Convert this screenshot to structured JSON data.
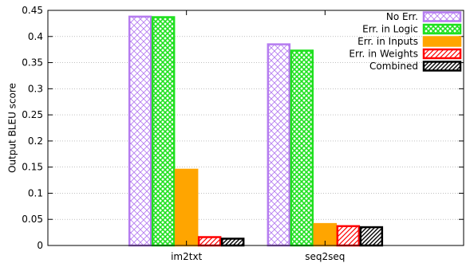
{
  "chart_data": {
    "type": "bar",
    "categories": [
      "im2txt",
      "seq2seq"
    ],
    "ylabel": "Output BLEU score",
    "xlabel": "",
    "title": "",
    "ylim": [
      0,
      0.45
    ],
    "yticks": [
      0,
      0.05,
      0.1,
      0.15,
      0.2,
      0.25,
      0.3,
      0.35,
      0.4,
      0.45
    ],
    "ytick_labels": [
      "0",
      "0.05",
      "0.1",
      "0.15",
      "0.2",
      "0.25",
      "0.3",
      "0.35",
      "0.4",
      "0.45"
    ],
    "grid": true,
    "legend_position": "top-right",
    "series": [
      {
        "name": "No Err.",
        "values": [
          0.438,
          0.385
        ],
        "color": "#b57cf0",
        "pattern": "crosshatch"
      },
      {
        "name": "Err. in Logic",
        "values": [
          0.437,
          0.373
        ],
        "color": "#1fe01f",
        "pattern": "crosshatch-dense"
      },
      {
        "name": "Err. in Inputs",
        "values": [
          0.145,
          0.041
        ],
        "color": "#ffa500",
        "pattern": "solid"
      },
      {
        "name": "Err. in Weights",
        "values": [
          0.016,
          0.037
        ],
        "color": "#ff0000",
        "pattern": "diagonal"
      },
      {
        "name": "Combined",
        "values": [
          0.013,
          0.035
        ],
        "color": "#000000",
        "pattern": "diagonal-dense"
      }
    ]
  }
}
